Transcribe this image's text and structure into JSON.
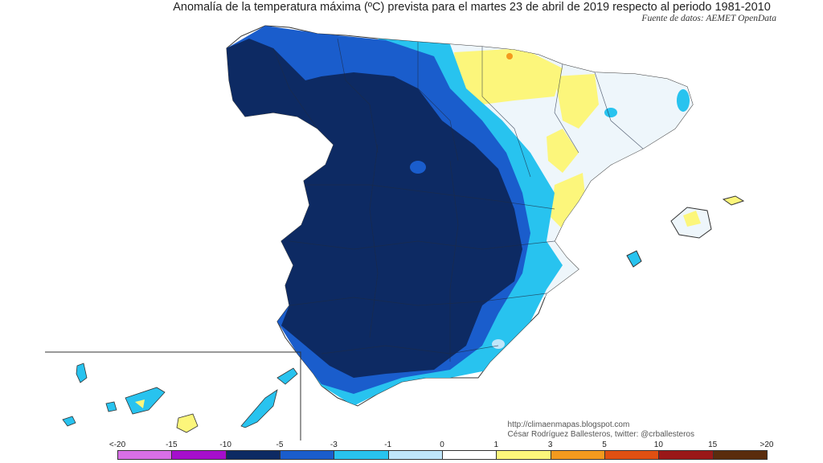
{
  "title": "Anomalía de la temperatura máxima (ºC) prevista para el martes 23 de abril de 2019 respecto al periodo 1981-2010",
  "source": "Fuente de datos: AEMET OpenData",
  "credits": {
    "url": "http://climaenmapas.blogspot.com",
    "author": "César Rodríguez Ballesteros, twitter: @crballesteros"
  },
  "legend": {
    "ticks": [
      "<-20",
      "-15",
      "-10",
      "-5",
      "-3",
      "-1",
      "0",
      "1",
      "3",
      "5",
      "10",
      "15",
      ">20"
    ],
    "colors": [
      "#d86fe6",
      "#a50fcc",
      "#0d2a63",
      "#1a5dcc",
      "#28c3ef",
      "#bfe6fa",
      "#ffffff",
      "#fcf67b",
      "#f39a1e",
      "#e05012",
      "#9a1818",
      "#5a2c0d"
    ]
  },
  "map": {
    "region": "España (Península, Baleares y Canarias)",
    "anomaly_colors": {
      "very_cold": "#0d2a63",
      "cold": "#1a5dcc",
      "cool": "#28c3ef",
      "slightly_cool": "#bfe6fa",
      "neutral": "#ffffff",
      "slightly_warm": "#fcf67b",
      "warm": "#f39a1e"
    }
  }
}
